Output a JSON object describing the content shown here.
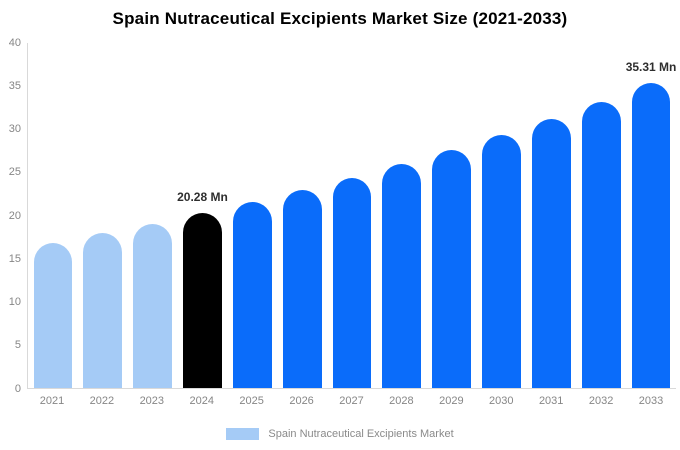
{
  "chart_data": {
    "type": "bar",
    "title": "Spain Nutraceutical Excipients Market Size (2021-2033)",
    "categories": [
      "2021",
      "2022",
      "2023",
      "2024",
      "2025",
      "2026",
      "2027",
      "2028",
      "2029",
      "2030",
      "2031",
      "2032",
      "2033"
    ],
    "values": [
      16.86,
      17.93,
      19.07,
      20.28,
      21.57,
      22.94,
      24.4,
      25.95,
      27.6,
      29.35,
      31.21,
      33.2,
      35.31
    ],
    "point_labels": [
      "",
      "",
      "",
      "20.28 Mn",
      "",
      "",
      "",
      "",
      "",
      "",
      "",
      "",
      "35.31 Mn"
    ],
    "bar_color_keys": [
      "light",
      "light",
      "light",
      "black",
      "blue",
      "blue",
      "blue",
      "blue",
      "blue",
      "blue",
      "blue",
      "blue",
      "blue"
    ],
    "palette": {
      "light": "#a5cbf6",
      "blue": "#0a6cfa",
      "black": "#000000"
    },
    "ylim": [
      0,
      40
    ],
    "yticks": [
      0,
      5,
      10,
      15,
      20,
      25,
      30,
      35,
      40
    ],
    "grid": false,
    "legend_position": "bottom-center",
    "xlabel": "",
    "ylabel": "",
    "legend": {
      "label": "Spain Nutraceutical Excipients Market",
      "swatch_color": "#a5cbf6"
    },
    "axis_line_color": "#d9d9d9",
    "tick_label_color": "#868686",
    "value_label_color": "#2e2e2e"
  }
}
